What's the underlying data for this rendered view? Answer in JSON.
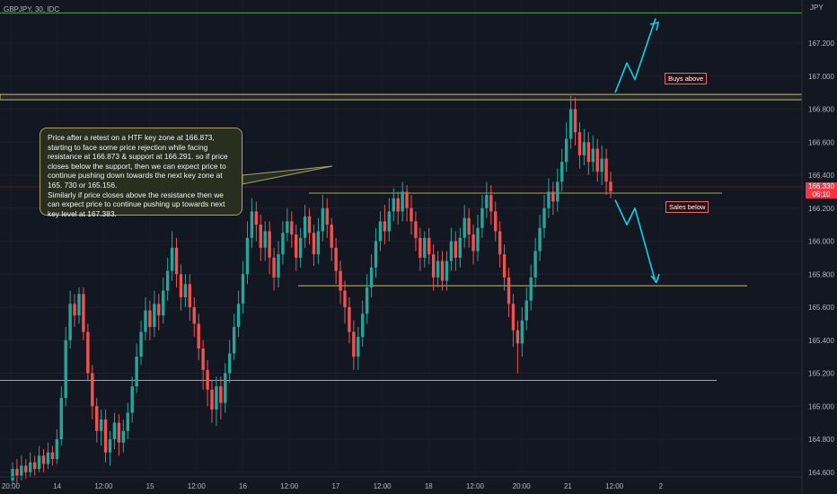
{
  "header": {
    "symbol": "GBPJPY, 30, IDC",
    "currency": "JPY"
  },
  "current_price": {
    "value": "166.330",
    "countdown": "06:10"
  },
  "callout": {
    "text": "Price after a retest on a HTF key zone at 166.873, starting to face some price rejection while facing resistance at 166.873 & support at 166.291. so if price closes below the support, then we can expect price to continue pushing down towards the next key zone at 165. 730 or 165.156.\nSimilarly if price closes above the resistance then we can expect price to continue pushing up towards next key level at 167.383."
  },
  "labels": {
    "buys_above": "Buys above",
    "sales_below": "Sales below"
  },
  "colors": {
    "background": "#131722",
    "up": "#26a69a",
    "down": "#ef5350",
    "key_level": "#c8bf5c",
    "arrow": "#00d8e8",
    "top_line": "#4caf50"
  },
  "chart_data": {
    "type": "candlestick",
    "ylim": [
      164.6,
      167.4
    ],
    "y_ticks": [
      "167.200",
      "167.000",
      "166.800",
      "166.600",
      "166.400",
      "166.200",
      "166.000",
      "165.800",
      "165.600",
      "165.400",
      "165.200",
      "165.000",
      "164.800",
      "164.600"
    ],
    "x_ticks": [
      "20:00",
      "14",
      "12:00",
      "15",
      "12:00",
      "16",
      "12:00",
      "17",
      "12:00",
      "18",
      "12:00",
      "20:00",
      "21",
      "12:00",
      "2"
    ],
    "levels": [
      {
        "value": 167.383
      },
      {
        "value": 166.873
      },
      {
        "value": 166.291
      },
      {
        "value": 165.73
      },
      {
        "value": 165.156
      }
    ],
    "candles": [
      [
        164.55,
        164.62,
        164.66,
        164.52
      ],
      [
        164.62,
        164.58,
        164.68,
        164.53
      ],
      [
        164.58,
        164.64,
        164.7,
        164.55
      ],
      [
        164.64,
        164.6,
        164.68,
        164.56
      ],
      [
        164.6,
        164.66,
        164.72,
        164.57
      ],
      [
        164.66,
        164.62,
        164.7,
        164.58
      ],
      [
        164.62,
        164.7,
        164.76,
        164.6
      ],
      [
        164.7,
        164.65,
        164.74,
        164.6
      ],
      [
        164.65,
        164.72,
        164.78,
        164.62
      ],
      [
        164.72,
        164.68,
        164.76,
        164.64
      ],
      [
        164.68,
        164.8,
        164.86,
        164.65
      ],
      [
        164.8,
        165.05,
        165.12,
        164.76
      ],
      [
        165.05,
        165.4,
        165.48,
        165.0
      ],
      [
        165.4,
        165.62,
        165.7,
        165.35
      ],
      [
        165.62,
        165.55,
        165.68,
        165.48
      ],
      [
        165.55,
        165.68,
        165.72,
        165.5
      ],
      [
        165.68,
        165.45,
        165.72,
        165.4
      ],
      [
        165.45,
        165.2,
        165.5,
        165.15
      ],
      [
        165.2,
        165.0,
        165.25,
        164.92
      ],
      [
        165.0,
        164.85,
        165.05,
        164.78
      ],
      [
        164.85,
        164.92,
        164.98,
        164.76
      ],
      [
        164.92,
        164.72,
        164.98,
        164.66
      ],
      [
        164.72,
        164.8,
        164.85,
        164.64
      ],
      [
        164.8,
        164.9,
        164.96,
        164.74
      ],
      [
        164.9,
        164.78,
        164.95,
        164.7
      ],
      [
        164.78,
        164.85,
        164.92,
        164.72
      ],
      [
        164.85,
        164.96,
        165.02,
        164.8
      ],
      [
        164.96,
        165.12,
        165.18,
        164.9
      ],
      [
        165.12,
        165.3,
        165.38,
        165.08
      ],
      [
        165.3,
        165.45,
        165.52,
        165.25
      ],
      [
        165.45,
        165.58,
        165.66,
        165.4
      ],
      [
        165.58,
        165.48,
        165.64,
        165.4
      ],
      [
        165.48,
        165.62,
        165.7,
        165.42
      ],
      [
        165.62,
        165.55,
        165.68,
        165.46
      ],
      [
        165.55,
        165.7,
        165.78,
        165.5
      ],
      [
        165.7,
        165.82,
        165.9,
        165.64
      ],
      [
        165.82,
        165.96,
        166.06,
        165.76
      ],
      [
        165.96,
        165.8,
        166.02,
        165.72
      ],
      [
        165.8,
        165.66,
        165.86,
        165.58
      ],
      [
        165.66,
        165.74,
        165.8,
        165.6
      ],
      [
        165.74,
        165.6,
        165.8,
        165.52
      ],
      [
        165.6,
        165.5,
        165.66,
        165.42
      ],
      [
        165.5,
        165.35,
        165.56,
        165.28
      ],
      [
        165.35,
        165.22,
        165.4,
        165.1
      ],
      [
        165.22,
        165.1,
        165.28,
        165.0
      ],
      [
        165.1,
        164.98,
        165.16,
        164.9
      ],
      [
        164.98,
        165.12,
        165.18,
        164.88
      ],
      [
        165.12,
        165.02,
        165.18,
        164.92
      ],
      [
        165.02,
        165.2,
        165.26,
        164.96
      ],
      [
        165.2,
        165.32,
        165.4,
        165.14
      ],
      [
        165.32,
        165.48,
        165.56,
        165.28
      ],
      [
        165.48,
        165.62,
        165.7,
        165.42
      ],
      [
        165.62,
        165.8,
        165.88,
        165.56
      ],
      [
        165.8,
        166.02,
        166.12,
        165.74
      ],
      [
        166.02,
        166.18,
        166.26,
        165.96
      ],
      [
        166.18,
        166.1,
        166.24,
        166.0
      ],
      [
        166.1,
        165.96,
        166.16,
        165.88
      ],
      [
        165.96,
        166.06,
        166.12,
        165.88
      ],
      [
        166.06,
        165.9,
        166.12,
        165.8
      ],
      [
        165.9,
        165.78,
        165.96,
        165.7
      ],
      [
        165.78,
        165.92,
        166.0,
        165.72
      ],
      [
        165.92,
        166.05,
        166.12,
        165.86
      ],
      [
        166.05,
        166.12,
        166.2,
        166.0
      ],
      [
        166.12,
        166.04,
        166.18,
        165.96
      ],
      [
        166.04,
        165.9,
        166.1,
        165.82
      ],
      [
        165.9,
        166.02,
        166.08,
        165.84
      ],
      [
        166.02,
        166.15,
        166.22,
        165.96
      ],
      [
        166.15,
        166.05,
        166.2,
        165.98
      ],
      [
        166.05,
        165.92,
        166.1,
        165.85
      ],
      [
        165.92,
        166.06,
        166.14,
        165.86
      ],
      [
        166.06,
        166.2,
        166.28,
        166.0
      ],
      [
        166.2,
        166.1,
        166.26,
        166.02
      ],
      [
        166.1,
        165.96,
        166.14,
        165.88
      ],
      [
        165.96,
        165.82,
        166.02,
        165.74
      ],
      [
        165.82,
        165.7,
        165.88,
        165.62
      ],
      [
        165.7,
        165.6,
        165.76,
        165.5
      ],
      [
        165.6,
        165.45,
        165.66,
        165.38
      ],
      [
        165.45,
        165.3,
        165.52,
        165.22
      ],
      [
        165.3,
        165.42,
        165.48,
        165.22
      ],
      [
        165.42,
        165.56,
        165.64,
        165.36
      ],
      [
        165.56,
        165.72,
        165.8,
        165.5
      ],
      [
        165.72,
        165.84,
        165.92,
        165.66
      ],
      [
        165.84,
        166.0,
        166.08,
        165.78
      ],
      [
        166.0,
        166.12,
        166.18,
        165.94
      ],
      [
        166.12,
        166.06,
        166.22,
        165.98
      ],
      [
        166.06,
        166.18,
        166.26,
        166.0
      ],
      [
        166.18,
        166.26,
        166.32,
        166.12
      ],
      [
        166.26,
        166.18,
        166.3,
        166.1
      ],
      [
        166.18,
        166.3,
        166.36,
        166.12
      ],
      [
        166.3,
        166.2,
        166.34,
        166.12
      ],
      [
        166.2,
        166.12,
        166.28,
        166.04
      ],
      [
        166.12,
        166.02,
        166.18,
        165.94
      ],
      [
        166.02,
        165.9,
        166.08,
        165.82
      ],
      [
        165.9,
        166.02,
        166.06,
        165.84
      ],
      [
        166.02,
        165.92,
        166.08,
        165.86
      ],
      [
        165.92,
        165.78,
        165.98,
        165.7
      ],
      [
        165.78,
        165.88,
        165.94,
        165.72
      ],
      [
        165.88,
        165.76,
        165.94,
        165.7
      ],
      [
        165.76,
        165.88,
        165.94,
        165.7
      ],
      [
        165.88,
        166.0,
        166.08,
        165.82
      ],
      [
        166.0,
        165.9,
        166.06,
        165.82
      ],
      [
        165.9,
        166.02,
        166.08,
        165.84
      ],
      [
        166.02,
        166.14,
        166.22,
        165.96
      ],
      [
        166.14,
        166.04,
        166.2,
        165.96
      ],
      [
        166.04,
        165.94,
        166.1,
        165.86
      ],
      [
        165.94,
        166.08,
        166.16,
        165.88
      ],
      [
        166.08,
        166.2,
        166.28,
        166.02
      ],
      [
        166.2,
        166.28,
        166.36,
        166.14
      ],
      [
        166.28,
        166.18,
        166.34,
        166.1
      ],
      [
        166.18,
        166.06,
        166.24,
        166.0
      ],
      [
        166.06,
        165.92,
        166.12,
        165.84
      ],
      [
        165.92,
        165.78,
        165.98,
        165.7
      ],
      [
        165.78,
        165.62,
        165.84,
        165.54
      ],
      [
        165.62,
        165.46,
        165.68,
        165.36
      ],
      [
        165.46,
        165.38,
        165.52,
        165.2
      ],
      [
        165.38,
        165.52,
        165.6,
        165.3
      ],
      [
        165.52,
        165.64,
        165.72,
        165.46
      ],
      [
        165.64,
        165.78,
        165.86,
        165.58
      ],
      [
        165.78,
        165.94,
        166.02,
        165.72
      ],
      [
        165.94,
        166.08,
        166.16,
        165.88
      ],
      [
        166.08,
        166.2,
        166.28,
        166.02
      ],
      [
        166.2,
        166.3,
        166.38,
        166.14
      ],
      [
        166.3,
        166.24,
        166.36,
        166.16
      ],
      [
        166.24,
        166.36,
        166.44,
        166.18
      ],
      [
        166.36,
        166.48,
        166.56,
        166.3
      ],
      [
        166.48,
        166.62,
        166.72,
        166.42
      ],
      [
        166.62,
        166.8,
        166.88,
        166.56
      ],
      [
        166.8,
        166.66,
        166.87,
        166.58
      ],
      [
        166.66,
        166.52,
        166.72,
        166.44
      ],
      [
        166.52,
        166.6,
        166.68,
        166.46
      ],
      [
        166.6,
        166.48,
        166.66,
        166.4
      ],
      [
        166.48,
        166.56,
        166.64,
        166.42
      ],
      [
        166.56,
        166.42,
        166.62,
        166.36
      ],
      [
        166.42,
        166.5,
        166.58,
        166.34
      ],
      [
        166.5,
        166.36,
        166.56,
        166.28
      ],
      [
        166.36,
        166.3,
        166.42,
        166.26
      ]
    ],
    "projection_up": [
      [
        166.38,
        166.9
      ],
      [
        166.48,
        167.08
      ],
      [
        166.4,
        166.98
      ],
      [
        166.8,
        167.35
      ]
    ],
    "projection_down": [
      [
        166.45,
        166.25
      ],
      [
        166.55,
        166.1
      ],
      [
        166.4,
        166.2
      ],
      [
        166.95,
        165.75
      ]
    ]
  }
}
